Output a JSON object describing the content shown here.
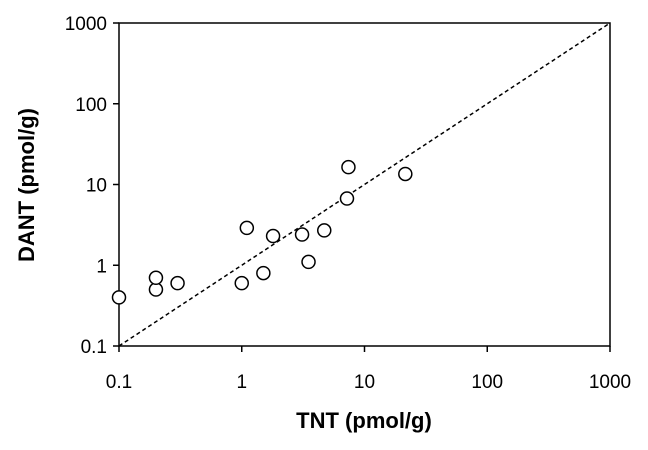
{
  "chart_data": {
    "type": "scatter",
    "title": "",
    "xlabel": "TNT (pmol/g)",
    "ylabel": "DANT (pmol/g)",
    "x_scale": "log",
    "y_scale": "log",
    "xlim": [
      0.1,
      1000
    ],
    "ylim": [
      0.1,
      1000
    ],
    "x_ticks": [
      0.1,
      1,
      10,
      100,
      1000
    ],
    "y_ticks": [
      0.1,
      1,
      10,
      100,
      1000
    ],
    "x_tick_labels": [
      "0.1",
      "1",
      "10",
      "100",
      "1000"
    ],
    "y_tick_labels": [
      "0.1",
      "1",
      "10",
      "100",
      "1000"
    ],
    "grid": false,
    "legend": false,
    "marker": "open-circle",
    "reference_line": {
      "style": "dashed",
      "from": [
        0.1,
        0.1
      ],
      "to": [
        1000,
        1000
      ]
    },
    "series": [
      {
        "points": [
          {
            "x": 0.1,
            "y": 0.4
          },
          {
            "x": 0.2,
            "y": 0.5
          },
          {
            "x": 0.2,
            "y": 0.7
          },
          {
            "x": 0.3,
            "y": 0.6
          },
          {
            "x": 1.0,
            "y": 0.6
          },
          {
            "x": 1.1,
            "y": 2.9
          },
          {
            "x": 1.5,
            "y": 0.8
          },
          {
            "x": 1.8,
            "y": 2.3
          },
          {
            "x": 3.1,
            "y": 2.4
          },
          {
            "x": 3.5,
            "y": 1.1
          },
          {
            "x": 4.7,
            "y": 2.7
          },
          {
            "x": 7.2,
            "y": 6.7
          },
          {
            "x": 7.4,
            "y": 16.4
          },
          {
            "x": 21.5,
            "y": 13.5
          }
        ]
      }
    ]
  }
}
